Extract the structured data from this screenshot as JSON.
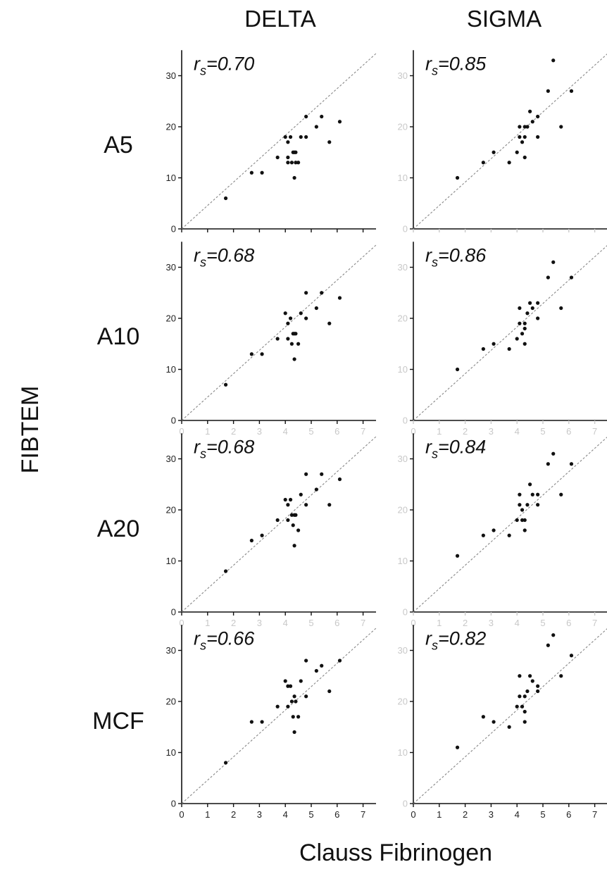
{
  "labels": {
    "col_titles": [
      "DELTA",
      "SIGMA"
    ],
    "row_titles": [
      "A5",
      "A10",
      "A20",
      "MCF"
    ],
    "y_title": "FIBTEM",
    "x_title": "Clauss Fibrinogen",
    "corr_prefix": "r",
    "corr_sub": "s",
    "corr_eq": "="
  },
  "chart_data": [
    {
      "type": "scatter",
      "row": "A5",
      "column": "DELTA",
      "r_s": "0.70",
      "xlim": [
        0,
        7.5
      ],
      "ylim": [
        0,
        35
      ],
      "xticks": [
        "0",
        "1",
        "2",
        "3",
        "4",
        "5",
        "6",
        "7"
      ],
      "yticks": [
        "0",
        "10",
        "20",
        "30"
      ],
      "reference_line": "identity (dashed)",
      "points": [
        [
          1.7,
          6
        ],
        [
          2.7,
          11
        ],
        [
          3.1,
          11
        ],
        [
          3.7,
          14
        ],
        [
          4.0,
          18
        ],
        [
          4.1,
          14
        ],
        [
          4.1,
          17
        ],
        [
          4.1,
          13
        ],
        [
          4.2,
          18
        ],
        [
          4.25,
          13
        ],
        [
          4.3,
          15
        ],
        [
          4.35,
          10
        ],
        [
          4.35,
          15
        ],
        [
          4.4,
          13
        ],
        [
          4.4,
          15
        ],
        [
          4.5,
          13
        ],
        [
          4.6,
          18
        ],
        [
          4.8,
          18
        ],
        [
          4.8,
          22
        ],
        [
          5.2,
          20
        ],
        [
          5.4,
          22
        ],
        [
          5.7,
          17
        ],
        [
          6.1,
          21
        ]
      ]
    },
    {
      "type": "scatter",
      "row": "A5",
      "column": "SIGMA",
      "r_s": "0.85",
      "xlim": [
        0,
        7.5
      ],
      "ylim": [
        0,
        35
      ],
      "xticks": [
        "0",
        "1",
        "2",
        "3",
        "4",
        "5",
        "6",
        "7"
      ],
      "yticks": [
        "0",
        "10",
        "20",
        "30"
      ],
      "reference_line": "identity (dashed)",
      "points": [
        [
          1.7,
          10
        ],
        [
          2.7,
          13
        ],
        [
          3.1,
          15
        ],
        [
          3.7,
          13
        ],
        [
          4.0,
          15
        ],
        [
          4.1,
          18
        ],
        [
          4.1,
          20
        ],
        [
          4.2,
          17
        ],
        [
          4.3,
          14
        ],
        [
          4.3,
          18
        ],
        [
          4.3,
          20
        ],
        [
          4.4,
          20
        ],
        [
          4.5,
          23
        ],
        [
          4.6,
          21
        ],
        [
          4.8,
          18
        ],
        [
          4.8,
          22
        ],
        [
          5.2,
          27
        ],
        [
          5.4,
          33
        ],
        [
          5.7,
          20
        ],
        [
          6.1,
          27
        ]
      ]
    },
    {
      "type": "scatter",
      "row": "A10",
      "column": "DELTA",
      "r_s": "0.68",
      "xlim": [
        0,
        7.5
      ],
      "ylim": [
        0,
        35
      ],
      "xticks": [
        "0",
        "1",
        "2",
        "3",
        "4",
        "5",
        "6",
        "7"
      ],
      "yticks": [
        "0",
        "10",
        "20",
        "30"
      ],
      "reference_line": "identity (dashed)",
      "points": [
        [
          1.7,
          7
        ],
        [
          2.7,
          13
        ],
        [
          3.1,
          13
        ],
        [
          3.7,
          16
        ],
        [
          4.0,
          21
        ],
        [
          4.1,
          16
        ],
        [
          4.1,
          19
        ],
        [
          4.2,
          20
        ],
        [
          4.25,
          15
        ],
        [
          4.3,
          17
        ],
        [
          4.35,
          12
        ],
        [
          4.35,
          17
        ],
        [
          4.4,
          17
        ],
        [
          4.5,
          15
        ],
        [
          4.6,
          21
        ],
        [
          4.8,
          20
        ],
        [
          4.8,
          25
        ],
        [
          5.2,
          22
        ],
        [
          5.4,
          25
        ],
        [
          5.7,
          19
        ],
        [
          6.1,
          24
        ]
      ]
    },
    {
      "type": "scatter",
      "row": "A10",
      "column": "SIGMA",
      "r_s": "0.86",
      "xlim": [
        0,
        7.5
      ],
      "ylim": [
        0,
        35
      ],
      "xticks": [
        "0",
        "1",
        "2",
        "3",
        "4",
        "5",
        "6",
        "7"
      ],
      "yticks": [
        "0",
        "10",
        "20",
        "30"
      ],
      "reference_line": "identity (dashed)",
      "points": [
        [
          1.7,
          10
        ],
        [
          2.7,
          14
        ],
        [
          3.1,
          15
        ],
        [
          3.7,
          14
        ],
        [
          4.0,
          16
        ],
        [
          4.1,
          19
        ],
        [
          4.1,
          22
        ],
        [
          4.2,
          17
        ],
        [
          4.3,
          15
        ],
        [
          4.3,
          18
        ],
        [
          4.3,
          19
        ],
        [
          4.4,
          21
        ],
        [
          4.5,
          23
        ],
        [
          4.6,
          22
        ],
        [
          4.8,
          20
        ],
        [
          4.8,
          23
        ],
        [
          5.2,
          28
        ],
        [
          5.4,
          31
        ],
        [
          5.7,
          22
        ],
        [
          6.1,
          28
        ]
      ]
    },
    {
      "type": "scatter",
      "row": "A20",
      "column": "DELTA",
      "r_s": "0.68",
      "xlim": [
        0,
        7.5
      ],
      "ylim": [
        0,
        35
      ],
      "xticks": [
        "0",
        "1",
        "2",
        "3",
        "4",
        "5",
        "6",
        "7"
      ],
      "yticks": [
        "0",
        "10",
        "20",
        "30"
      ],
      "reference_line": "identity (dashed)",
      "points": [
        [
          1.7,
          8
        ],
        [
          2.7,
          14
        ],
        [
          3.1,
          15
        ],
        [
          3.7,
          18
        ],
        [
          4.0,
          22
        ],
        [
          4.1,
          18
        ],
        [
          4.1,
          21
        ],
        [
          4.2,
          22
        ],
        [
          4.25,
          19
        ],
        [
          4.3,
          17
        ],
        [
          4.35,
          13
        ],
        [
          4.35,
          19
        ],
        [
          4.4,
          19
        ],
        [
          4.5,
          16
        ],
        [
          4.6,
          23
        ],
        [
          4.8,
          21
        ],
        [
          4.8,
          27
        ],
        [
          5.2,
          24
        ],
        [
          5.4,
          27
        ],
        [
          5.7,
          21
        ],
        [
          6.1,
          26
        ]
      ]
    },
    {
      "type": "scatter",
      "row": "A20",
      "column": "SIGMA",
      "r_s": "0.84",
      "xlim": [
        0,
        7.5
      ],
      "ylim": [
        0,
        35
      ],
      "xticks": [
        "0",
        "1",
        "2",
        "3",
        "4",
        "5",
        "6",
        "7"
      ],
      "yticks": [
        "0",
        "10",
        "20",
        "30"
      ],
      "reference_line": "identity (dashed)",
      "points": [
        [
          1.7,
          11
        ],
        [
          2.7,
          15
        ],
        [
          3.1,
          16
        ],
        [
          3.7,
          15
        ],
        [
          4.0,
          18
        ],
        [
          4.1,
          21
        ],
        [
          4.1,
          23
        ],
        [
          4.2,
          18
        ],
        [
          4.2,
          20
        ],
        [
          4.3,
          16
        ],
        [
          4.3,
          18
        ],
        [
          4.4,
          21
        ],
        [
          4.5,
          25
        ],
        [
          4.6,
          23
        ],
        [
          4.8,
          21
        ],
        [
          4.8,
          23
        ],
        [
          5.2,
          29
        ],
        [
          5.4,
          31
        ],
        [
          5.7,
          23
        ],
        [
          6.1,
          29
        ]
      ]
    },
    {
      "type": "scatter",
      "row": "MCF",
      "column": "DELTA",
      "r_s": "0.66",
      "xlim": [
        0,
        7.5
      ],
      "ylim": [
        0,
        35
      ],
      "xticks": [
        "0",
        "1",
        "2",
        "3",
        "4",
        "5",
        "6",
        "7"
      ],
      "yticks": [
        "0",
        "10",
        "20",
        "30"
      ],
      "reference_line": "identity (dashed)",
      "points": [
        [
          1.7,
          8
        ],
        [
          2.7,
          16
        ],
        [
          3.1,
          16
        ],
        [
          3.7,
          19
        ],
        [
          4.0,
          24
        ],
        [
          4.1,
          19
        ],
        [
          4.1,
          23
        ],
        [
          4.2,
          23
        ],
        [
          4.25,
          20
        ],
        [
          4.3,
          17
        ],
        [
          4.35,
          14
        ],
        [
          4.35,
          21
        ],
        [
          4.4,
          20
        ],
        [
          4.5,
          17
        ],
        [
          4.6,
          24
        ],
        [
          4.8,
          21
        ],
        [
          4.8,
          28
        ],
        [
          5.2,
          26
        ],
        [
          5.4,
          27
        ],
        [
          5.7,
          22
        ],
        [
          6.1,
          28
        ]
      ]
    },
    {
      "type": "scatter",
      "row": "MCF",
      "column": "SIGMA",
      "r_s": "0.82",
      "xlim": [
        0,
        7.5
      ],
      "ylim": [
        0,
        35
      ],
      "xticks": [
        "0",
        "1",
        "2",
        "3",
        "4",
        "5",
        "6",
        "7"
      ],
      "yticks": [
        "0",
        "10",
        "20",
        "30"
      ],
      "reference_line": "identity (dashed)",
      "points": [
        [
          1.7,
          11
        ],
        [
          2.7,
          17
        ],
        [
          3.1,
          16
        ],
        [
          3.7,
          15
        ],
        [
          4.0,
          19
        ],
        [
          4.1,
          21
        ],
        [
          4.1,
          25
        ],
        [
          4.2,
          19
        ],
        [
          4.3,
          16
        ],
        [
          4.3,
          18
        ],
        [
          4.3,
          21
        ],
        [
          4.4,
          22
        ],
        [
          4.5,
          25
        ],
        [
          4.6,
          24
        ],
        [
          4.8,
          22
        ],
        [
          4.8,
          23
        ],
        [
          5.2,
          31
        ],
        [
          5.4,
          33
        ],
        [
          5.7,
          25
        ],
        [
          6.1,
          29
        ]
      ]
    }
  ]
}
